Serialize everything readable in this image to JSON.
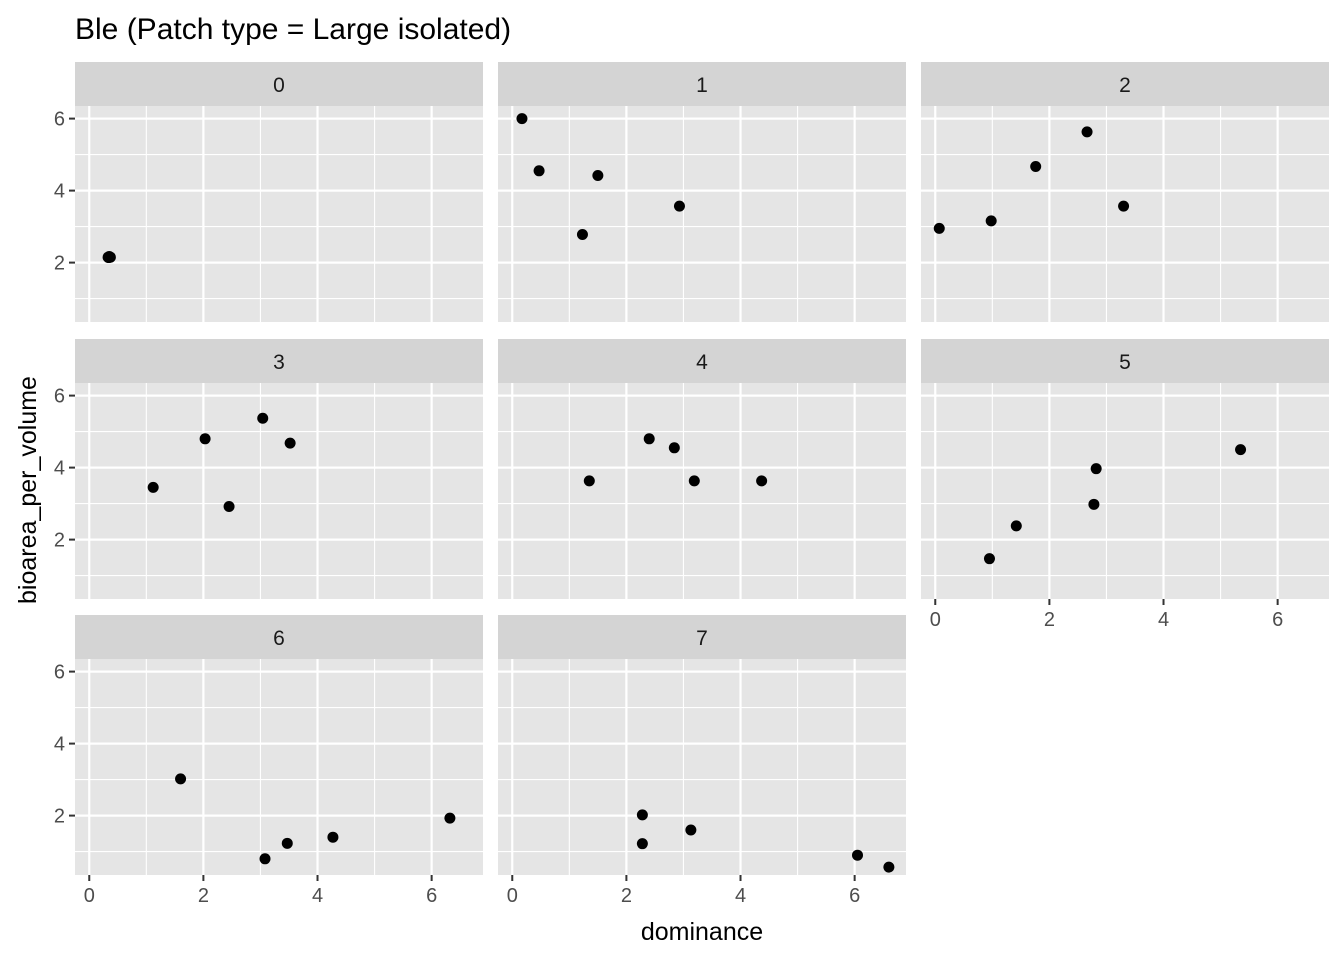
{
  "chart_data": {
    "type": "scatter",
    "title": "Ble (Patch type = Large isolated)",
    "xlabel": "dominance",
    "ylabel": "bioarea_per_volume",
    "xlim": [
      -0.25,
      6.9
    ],
    "ylim": [
      0.35,
      6.35
    ],
    "x_ticks": [
      0,
      2,
      4,
      6
    ],
    "y_ticks": [
      2,
      4,
      6
    ],
    "grid": true,
    "colors": {
      "panel_background": "#e5e5e5",
      "grid": "#ffffff",
      "strip_background": "#d4d4d4",
      "point": "#000000"
    },
    "panels": [
      {
        "label": "0",
        "points": [
          [
            0.33,
            2.15
          ],
          [
            0.35,
            2.17
          ],
          [
            0.37,
            2.15
          ],
          [
            0.34,
            2.14
          ]
        ]
      },
      {
        "label": "1",
        "points": [
          [
            0.17,
            6.0
          ],
          [
            0.47,
            4.55
          ],
          [
            1.5,
            4.42
          ],
          [
            1.23,
            2.78
          ],
          [
            2.93,
            3.57
          ]
        ]
      },
      {
        "label": "2",
        "points": [
          [
            0.07,
            2.95
          ],
          [
            0.98,
            3.16
          ],
          [
            1.76,
            4.67
          ],
          [
            2.66,
            5.63
          ],
          [
            3.3,
            3.57
          ]
        ]
      },
      {
        "label": "3",
        "points": [
          [
            1.12,
            3.45
          ],
          [
            2.03,
            4.8
          ],
          [
            2.45,
            2.92
          ],
          [
            3.04,
            5.37
          ],
          [
            3.52,
            4.68
          ]
        ]
      },
      {
        "label": "4",
        "points": [
          [
            1.35,
            3.63
          ],
          [
            2.4,
            4.8
          ],
          [
            2.84,
            4.55
          ],
          [
            3.19,
            3.63
          ],
          [
            4.37,
            3.63
          ]
        ]
      },
      {
        "label": "5",
        "points": [
          [
            0.95,
            1.47
          ],
          [
            1.42,
            2.38
          ],
          [
            2.78,
            2.98
          ],
          [
            2.82,
            3.97
          ],
          [
            5.35,
            4.5
          ]
        ]
      },
      {
        "label": "6",
        "points": [
          [
            1.6,
            3.02
          ],
          [
            3.08,
            0.8
          ],
          [
            3.47,
            1.23
          ],
          [
            4.27,
            1.4
          ],
          [
            6.32,
            1.93
          ]
        ]
      },
      {
        "label": "7",
        "points": [
          [
            2.28,
            2.02
          ],
          [
            2.28,
            1.22
          ],
          [
            3.13,
            1.6
          ],
          [
            6.05,
            0.9
          ],
          [
            6.6,
            0.57
          ]
        ]
      }
    ]
  }
}
